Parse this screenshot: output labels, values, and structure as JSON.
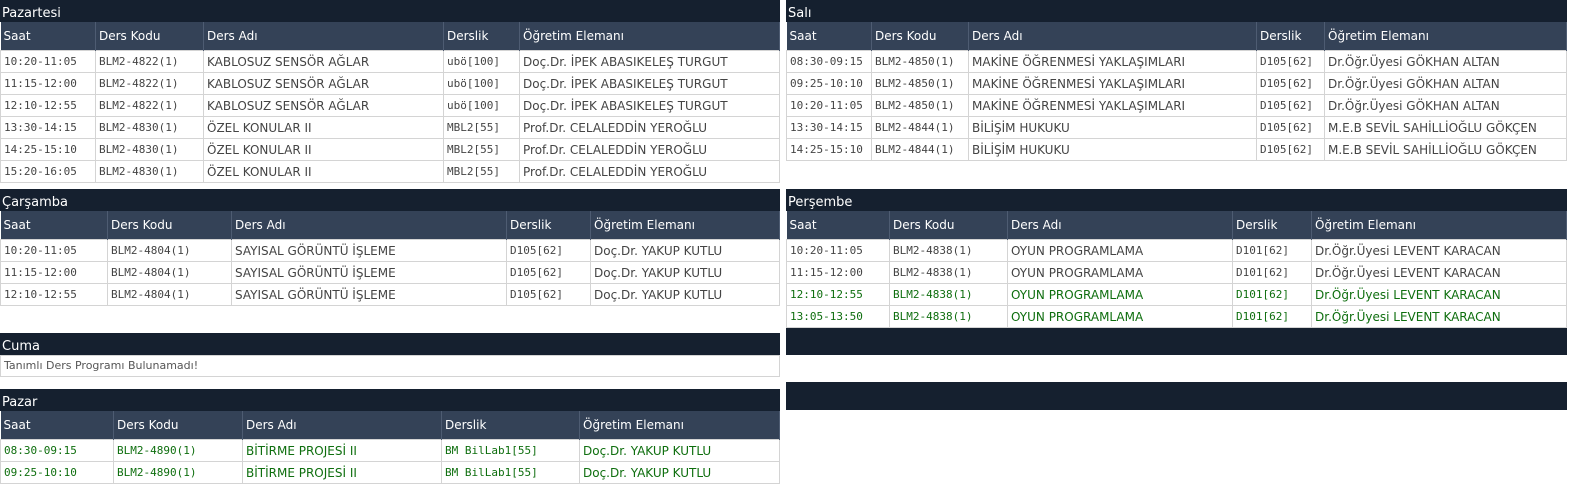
{
  "headers": {
    "saat": "Saat",
    "ders_kodu": "Ders Kodu",
    "ders_adi": "Ders Adı",
    "derslik": "Derslik",
    "ogretim": "Öğretim Elemanı"
  },
  "colors": {
    "title_bg": "#15202f",
    "header_bg": "#344257",
    "active_text": "#0e6e0e"
  },
  "pazartesi": {
    "title": "Pazartesi",
    "rows": [
      {
        "saat": "10:20-11:05",
        "kod": "BLM2-4822(1)",
        "ad": "KABLOSUZ SENSÖR AĞLAR",
        "derslik": "ubö[100]",
        "hoca": "Doç.Dr. İPEK ABASIKELEŞ TURGUT"
      },
      {
        "saat": "11:15-12:00",
        "kod": "BLM2-4822(1)",
        "ad": "KABLOSUZ SENSÖR AĞLAR",
        "derslik": "ubö[100]",
        "hoca": "Doç.Dr. İPEK ABASIKELEŞ TURGUT"
      },
      {
        "saat": "12:10-12:55",
        "kod": "BLM2-4822(1)",
        "ad": "KABLOSUZ SENSÖR AĞLAR",
        "derslik": "ubö[100]",
        "hoca": "Doç.Dr. İPEK ABASIKELEŞ TURGUT"
      },
      {
        "saat": "13:30-14:15",
        "kod": "BLM2-4830(1)",
        "ad": "ÖZEL KONULAR II",
        "derslik": "MBL2[55]",
        "hoca": "Prof.Dr. CELALEDDİN YEROĞLU"
      },
      {
        "saat": "14:25-15:10",
        "kod": "BLM2-4830(1)",
        "ad": "ÖZEL KONULAR II",
        "derslik": "MBL2[55]",
        "hoca": "Prof.Dr. CELALEDDİN YEROĞLU"
      },
      {
        "saat": "15:20-16:05",
        "kod": "BLM2-4830(1)",
        "ad": "ÖZEL KONULAR II",
        "derslik": "MBL2[55]",
        "hoca": "Prof.Dr. CELALEDDİN YEROĞLU"
      }
    ]
  },
  "sali": {
    "title": "Salı",
    "rows": [
      {
        "saat": "08:30-09:15",
        "kod": "BLM2-4850(1)",
        "ad": "MAKİNE ÖĞRENMESİ YAKLAŞIMLARI",
        "derslik": "D105[62]",
        "hoca": "Dr.Öğr.Üyesi GÖKHAN ALTAN"
      },
      {
        "saat": "09:25-10:10",
        "kod": "BLM2-4850(1)",
        "ad": "MAKİNE ÖĞRENMESİ YAKLAŞIMLARI",
        "derslik": "D105[62]",
        "hoca": "Dr.Öğr.Üyesi GÖKHAN ALTAN"
      },
      {
        "saat": "10:20-11:05",
        "kod": "BLM2-4850(1)",
        "ad": "MAKİNE ÖĞRENMESİ YAKLAŞIMLARI",
        "derslik": "D105[62]",
        "hoca": "Dr.Öğr.Üyesi GÖKHAN ALTAN"
      },
      {
        "saat": "13:30-14:15",
        "kod": "BLM2-4844(1)",
        "ad": "BİLİŞİM HUKUKU",
        "derslik": "D105[62]",
        "hoca": "M.E.B SEVİL SAHİLLİOĞLU GÖKÇEN"
      },
      {
        "saat": "14:25-15:10",
        "kod": "BLM2-4844(1)",
        "ad": "BİLİŞİM HUKUKU",
        "derslik": "D105[62]",
        "hoca": "M.E.B SEVİL SAHİLLİOĞLU GÖKÇEN"
      }
    ]
  },
  "carsamba": {
    "title": "Çarşamba",
    "rows": [
      {
        "saat": "10:20-11:05",
        "kod": "BLM2-4804(1)",
        "ad": "SAYISAL GÖRÜNTÜ İŞLEME",
        "derslik": "D105[62]",
        "hoca": "Doç.Dr. YAKUP KUTLU"
      },
      {
        "saat": "11:15-12:00",
        "kod": "BLM2-4804(1)",
        "ad": "SAYISAL GÖRÜNTÜ İŞLEME",
        "derslik": "D105[62]",
        "hoca": "Doç.Dr. YAKUP KUTLU"
      },
      {
        "saat": "12:10-12:55",
        "kod": "BLM2-4804(1)",
        "ad": "SAYISAL GÖRÜNTÜ İŞLEME",
        "derslik": "D105[62]",
        "hoca": "Doç.Dr. YAKUP KUTLU"
      }
    ]
  },
  "persembe": {
    "title": "Perşembe",
    "rows": [
      {
        "saat": "10:20-11:05",
        "kod": "BLM2-4838(1)",
        "ad": "OYUN PROGRAMLAMA",
        "derslik": "D101[62]",
        "hoca": "Dr.Öğr.Üyesi LEVENT KARACAN"
      },
      {
        "saat": "11:15-12:00",
        "kod": "BLM2-4838(1)",
        "ad": "OYUN PROGRAMLAMA",
        "derslik": "D101[62]",
        "hoca": "Dr.Öğr.Üyesi LEVENT KARACAN"
      },
      {
        "saat": "12:10-12:55",
        "kod": "BLM2-4838(1)",
        "ad": "OYUN PROGRAMLAMA",
        "derslik": "D101[62]",
        "hoca": "Dr.Öğr.Üyesi LEVENT KARACAN"
      },
      {
        "saat": "13:05-13:50",
        "kod": "BLM2-4838(1)",
        "ad": "OYUN PROGRAMLAMA",
        "derslik": "D101[62]",
        "hoca": "Dr.Öğr.Üyesi LEVENT KARACAN"
      }
    ]
  },
  "cuma": {
    "title": "Cuma",
    "message": "Tanımlı Ders Programı Bulunamadı!"
  },
  "pazar": {
    "title": "Pazar",
    "rows": [
      {
        "saat": "08:30-09:15",
        "kod": "BLM2-4890(1)",
        "ad": "BİTİRME PROJESİ II",
        "derslik": "BM BilLab1[55]",
        "hoca": "Doç.Dr. YAKUP KUTLU"
      },
      {
        "saat": "09:25-10:10",
        "kod": "BLM2-4890(1)",
        "ad": "BİTİRME PROJESİ II",
        "derslik": "BM BilLab1[55]",
        "hoca": "Doç.Dr. YAKUP KUTLU"
      }
    ]
  }
}
